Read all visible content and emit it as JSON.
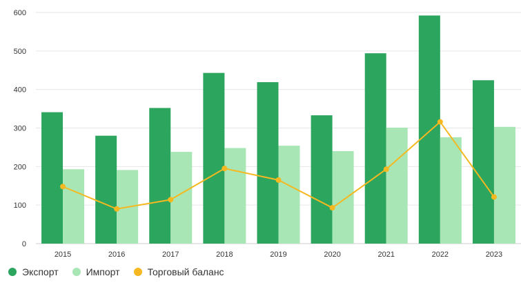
{
  "colors": {
    "export": "#2ca55f",
    "import": "#a8e6b5",
    "balance": "#f5b820",
    "grid": "#e6e6e6",
    "text": "#333333"
  },
  "legend": {
    "export_label": "Экспорт",
    "import_label": "Импорт",
    "balance_label": "Торговый баланс"
  },
  "chart_data": {
    "type": "bar",
    "categories": [
      "2015",
      "2016",
      "2017",
      "2018",
      "2019",
      "2020",
      "2021",
      "2022",
      "2023"
    ],
    "series": [
      {
        "name": "Экспорт",
        "type": "bar",
        "values": [
          341,
          280,
          352,
          443,
          419,
          333,
          494,
          592,
          424
        ]
      },
      {
        "name": "Импорт",
        "type": "bar",
        "values": [
          193,
          191,
          238,
          248,
          254,
          240,
          301,
          276,
          303
        ]
      },
      {
        "name": "Торговый баланс",
        "type": "line",
        "values": [
          148,
          90,
          114,
          195,
          165,
          93,
          193,
          316,
          121
        ]
      }
    ],
    "ylim": [
      0,
      600
    ],
    "yticks": [
      0,
      100,
      200,
      300,
      400,
      500,
      600
    ],
    "grid": true,
    "legend_position": "bottom-left"
  }
}
